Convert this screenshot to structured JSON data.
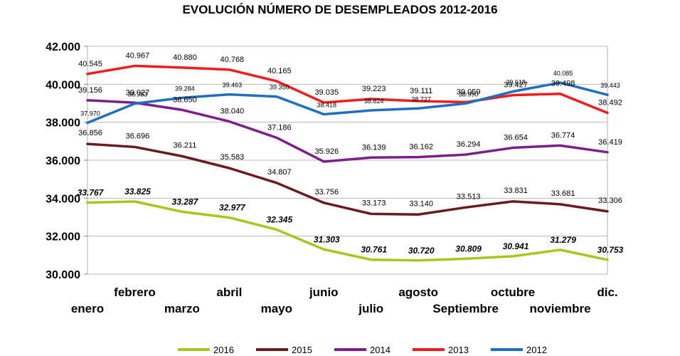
{
  "chart_data": {
    "type": "line",
    "title": "EVOLUCIÓN NÚMERO DE DESEMPLEADOS 2012-2016",
    "categories": [
      "enero",
      "febrero",
      "marzo",
      "abril",
      "mayo",
      "junio",
      "julio",
      "agosto",
      "Septiembre",
      "octubre",
      "noviembre",
      "dic."
    ],
    "ylim": [
      30000,
      42000
    ],
    "yticks": [
      30000,
      32000,
      34000,
      36000,
      38000,
      40000,
      42000
    ],
    "ytick_labels": [
      "30.000",
      "32.000",
      "34.000",
      "36.000",
      "38.000",
      "40.000",
      "42.000"
    ],
    "grid": "horizontal",
    "legend_position": "bottom",
    "series": [
      {
        "name": "2016",
        "color": "#a6c81e",
        "values": [
          33767,
          33825,
          33287,
          32977,
          32345,
          31303,
          30761,
          30720,
          30809,
          30941,
          31279,
          30753
        ],
        "labels": [
          "33.767",
          "33.825",
          "33.287",
          "32.977",
          "32.345",
          "31.303",
          "30.761",
          "30.720",
          "30.809",
          "30.941",
          "31.279",
          "30.753"
        ]
      },
      {
        "name": "2015",
        "color": "#6b1a22",
        "values": [
          36856,
          36696,
          36211,
          35583,
          34807,
          33756,
          33173,
          33140,
          33513,
          33831,
          33681,
          33306
        ],
        "labels": [
          "36.856",
          "36.696",
          "36.211",
          "35.583",
          "34.807",
          "33.756",
          "33.173",
          "33.140",
          "33.513",
          "33.831",
          "33.681",
          "33.306"
        ]
      },
      {
        "name": "2014",
        "color": "#7e1e8c",
        "values": [
          39156,
          39027,
          38650,
          38040,
          37186,
          35926,
          36139,
          36162,
          36294,
          36654,
          36774,
          36419
        ],
        "labels": [
          "39.156",
          "39.027",
          "38.650",
          "38.040",
          "37.186",
          "35.926",
          "36.139",
          "36.162",
          "36.294",
          "36.654",
          "36.774",
          "36.419"
        ]
      },
      {
        "name": "2013",
        "color": "#ee1c1c",
        "values": [
          40545,
          40967,
          40880,
          40768,
          40165,
          39035,
          39223,
          39111,
          39059,
          39427,
          39498,
          38492
        ],
        "labels": [
          "40.545",
          "40.967",
          "40.880",
          "40.768",
          "40.165",
          "39.035",
          "39.223",
          "39.111",
          "39.059",
          "39.427",
          "39.498",
          "38.492"
        ]
      },
      {
        "name": "2012",
        "color": "#1f6fc0",
        "values": [
          37970,
          38983,
          39284,
          39463,
          39350,
          38418,
          38624,
          38727,
          38990,
          39618,
          40085,
          39443
        ],
        "labels": [
          "37.970",
          "38.983",
          "39.284",
          "39.463",
          "39.350",
          "38.418",
          "38.624",
          "38.727",
          "38.990",
          "39.618",
          "40.085",
          "39.443"
        ]
      }
    ]
  }
}
